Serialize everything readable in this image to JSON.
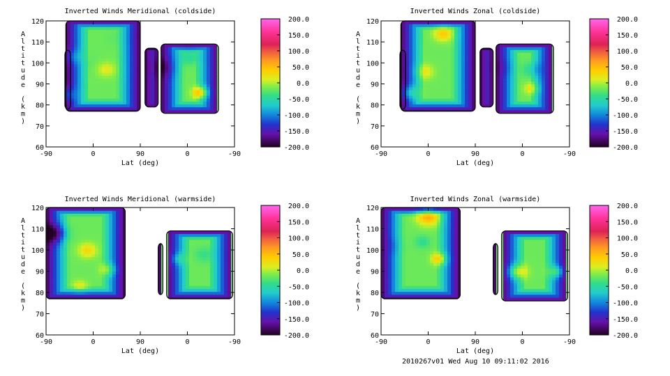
{
  "chart_data": [
    {
      "type": "heatmap",
      "title": "Inverted Winds Meridional (coldside)",
      "xlabel": "Lat (deg)",
      "ylabel": "Altitude (km)",
      "xticks": [
        "-90",
        "0",
        "90",
        "0",
        "-90"
      ],
      "yticks": [
        60,
        70,
        80,
        90,
        100,
        110,
        120
      ],
      "ylim": [
        60,
        120
      ],
      "colorbar": {
        "min": -200,
        "max": 200,
        "ticks": [
          "200.0",
          "150.0",
          "100.0",
          "50.0",
          "0.0",
          "-50.0",
          "-100.0",
          "-150.0",
          "-200.0"
        ]
      },
      "blobs": [
        {
          "x": 0.14,
          "y": 103,
          "v": 10,
          "r": 0.05
        },
        {
          "x": 0.1,
          "y": 85,
          "v": 30,
          "r": 0.05
        },
        {
          "x": 0.22,
          "y": 100,
          "v": -25,
          "r": 0.06
        },
        {
          "x": 0.32,
          "y": 97,
          "v": 15,
          "r": 0.05
        },
        {
          "x": 0.37,
          "y": 112,
          "v": -25,
          "r": 0.05
        },
        {
          "x": 0.63,
          "y": 98,
          "v": -45,
          "r": 0.06
        },
        {
          "x": 0.82,
          "y": 86,
          "v": 75,
          "r": 0.04
        },
        {
          "x": 0.76,
          "y": 103,
          "v": -50,
          "r": 0.05
        }
      ]
    },
    {
      "type": "heatmap",
      "title": "Inverted Winds Zonal (coldside)",
      "xlabel": "Lat (deg)",
      "ylabel": "Altitude (km)",
      "xticks": [
        "-90",
        "0",
        "90",
        "0",
        "-90"
      ],
      "yticks": [
        60,
        70,
        80,
        90,
        100,
        110,
        120
      ],
      "ylim": [
        60,
        120
      ],
      "colorbar": {
        "min": -200,
        "max": 200,
        "ticks": [
          "200.0",
          "150.0",
          "100.0",
          "50.0",
          "0.0",
          "-50.0",
          "-100.0",
          "-150.0",
          "-200.0"
        ]
      },
      "blobs": [
        {
          "x": 0.33,
          "y": 114,
          "v": 40,
          "r": 0.05
        },
        {
          "x": 0.23,
          "y": 96,
          "v": 20,
          "r": 0.05
        },
        {
          "x": 0.15,
          "y": 86,
          "v": 30,
          "r": 0.05
        },
        {
          "x": 0.66,
          "y": 98,
          "v": -30,
          "r": 0.05
        },
        {
          "x": 0.8,
          "y": 97,
          "v": -50,
          "r": 0.05
        },
        {
          "x": 0.8,
          "y": 88,
          "v": 25,
          "r": 0.04
        }
      ]
    },
    {
      "type": "heatmap",
      "title": "Inverted Winds Meridional (warmside)",
      "xlabel": "Lat (deg)",
      "ylabel": "Altitude (km)",
      "xticks": [
        "-90",
        "0",
        "90",
        "0",
        "-90"
      ],
      "yticks": [
        60,
        70,
        80,
        90,
        100,
        110,
        120
      ],
      "ylim": [
        60,
        120
      ],
      "colorbar": {
        "min": -200,
        "max": 200,
        "ticks": [
          "200.0",
          "150.0",
          "100.0",
          "50.0",
          "0.0",
          "-50.0",
          "-100.0",
          "-150.0",
          "-200.0"
        ]
      },
      "blobs": [
        {
          "x": 0.05,
          "y": 108,
          "v": -90,
          "r": 0.06
        },
        {
          "x": 0.22,
          "y": 100,
          "v": 30,
          "r": 0.05
        },
        {
          "x": 0.33,
          "y": 91,
          "v": 30,
          "r": 0.04
        },
        {
          "x": 0.18,
          "y": 83,
          "v": 20,
          "r": 0.04
        },
        {
          "x": 0.7,
          "y": 96,
          "v": 20,
          "r": 0.04
        },
        {
          "x": 0.84,
          "y": 98,
          "v": -40,
          "r": 0.05
        }
      ]
    },
    {
      "type": "heatmap",
      "title": "Inverted Winds Zonal (warmside)",
      "xlabel": "Lat (deg)",
      "ylabel": "Altitude (km)",
      "xticks": [
        "-90",
        "0",
        "90",
        "0",
        "-90"
      ],
      "yticks": [
        60,
        70,
        80,
        90,
        100,
        110,
        120
      ],
      "ylim": [
        60,
        120
      ],
      "colorbar": {
        "min": -200,
        "max": 200,
        "ticks": [
          "200.0",
          "150.0",
          "100.0",
          "50.0",
          "0.0",
          "-50.0",
          "-100.0",
          "-150.0",
          "-200.0"
        ]
      },
      "blobs": [
        {
          "x": 0.25,
          "y": 116,
          "v": 60,
          "r": 0.06
        },
        {
          "x": 0.07,
          "y": 102,
          "v": -30,
          "r": 0.05
        },
        {
          "x": 0.22,
          "y": 104,
          "v": -45,
          "r": 0.04
        },
        {
          "x": 0.31,
          "y": 96,
          "v": 50,
          "r": 0.04
        },
        {
          "x": 0.72,
          "y": 90,
          "v": 55,
          "r": 0.05
        },
        {
          "x": 0.93,
          "y": 90,
          "v": 45,
          "r": 0.04
        }
      ]
    }
  ],
  "footer": "2010267v01 Wed Aug 10 09:11:02 2016"
}
